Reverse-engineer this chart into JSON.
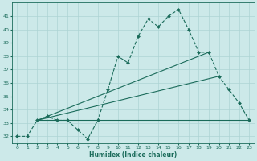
{
  "background_color": "#cce9e9",
  "grid_color": "#add4d4",
  "line_color": "#1a6b5a",
  "xlabel": "Humidex (Indice chaleur)",
  "xlim": [
    -0.5,
    23.5
  ],
  "ylim": [
    31.5,
    42.0
  ],
  "yticks": [
    32,
    33,
    34,
    35,
    36,
    37,
    38,
    39,
    40,
    41
  ],
  "xticks": [
    0,
    1,
    2,
    3,
    4,
    5,
    6,
    7,
    8,
    9,
    10,
    11,
    12,
    13,
    14,
    15,
    16,
    17,
    18,
    19,
    20,
    21,
    22,
    23
  ],
  "series": [
    {
      "x": [
        0,
        1,
        2,
        3,
        4,
        5,
        6,
        7,
        8,
        9,
        10,
        11,
        12,
        13,
        14,
        15,
        16,
        17,
        18,
        19,
        20,
        21,
        22,
        23
      ],
      "y": [
        32.0,
        32.0,
        33.2,
        33.5,
        33.2,
        33.2,
        32.5,
        31.8,
        33.2,
        35.5,
        38.0,
        37.5,
        39.5,
        40.8,
        40.2,
        41.0,
        41.5,
        40.0,
        38.3,
        38.3,
        36.5,
        35.5,
        34.5,
        33.2
      ],
      "marker": "D",
      "markersize": 2.0,
      "linewidth": 0.8,
      "linestyle": "--"
    },
    {
      "x": [
        2,
        19
      ],
      "y": [
        33.2,
        38.3
      ],
      "marker": null,
      "markersize": 0,
      "linewidth": 0.8,
      "linestyle": "-"
    },
    {
      "x": [
        2,
        20
      ],
      "y": [
        33.2,
        36.5
      ],
      "marker": null,
      "markersize": 0,
      "linewidth": 0.8,
      "linestyle": "-"
    },
    {
      "x": [
        2,
        23
      ],
      "y": [
        33.2,
        33.2
      ],
      "marker": null,
      "markersize": 0,
      "linewidth": 0.8,
      "linestyle": "-"
    }
  ]
}
